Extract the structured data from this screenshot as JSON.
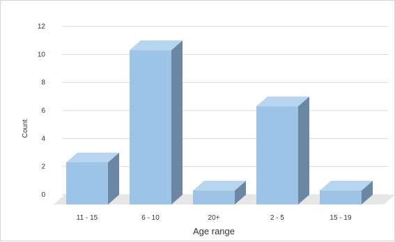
{
  "chart_data": {
    "type": "bar",
    "title": "",
    "xlabel": "Age range",
    "ylabel": "Count",
    "categories": [
      "11 - 15",
      "6 - 10",
      "20+",
      "2 - 5",
      "15 - 19"
    ],
    "values": [
      3,
      11,
      0,
      7,
      0
    ],
    "ylim": [
      0,
      12
    ],
    "yticks": [
      "0",
      "2",
      "4",
      "6",
      "8",
      "10",
      "12"
    ],
    "grid": true,
    "legend": "none",
    "style": "3d"
  },
  "colors": {
    "bar_front": "#9dc3e6",
    "bar_top": "#b8d5ef",
    "bar_side": "#6b87a3",
    "floor": "#e6e6e6",
    "grid": "#d9d9d9"
  }
}
